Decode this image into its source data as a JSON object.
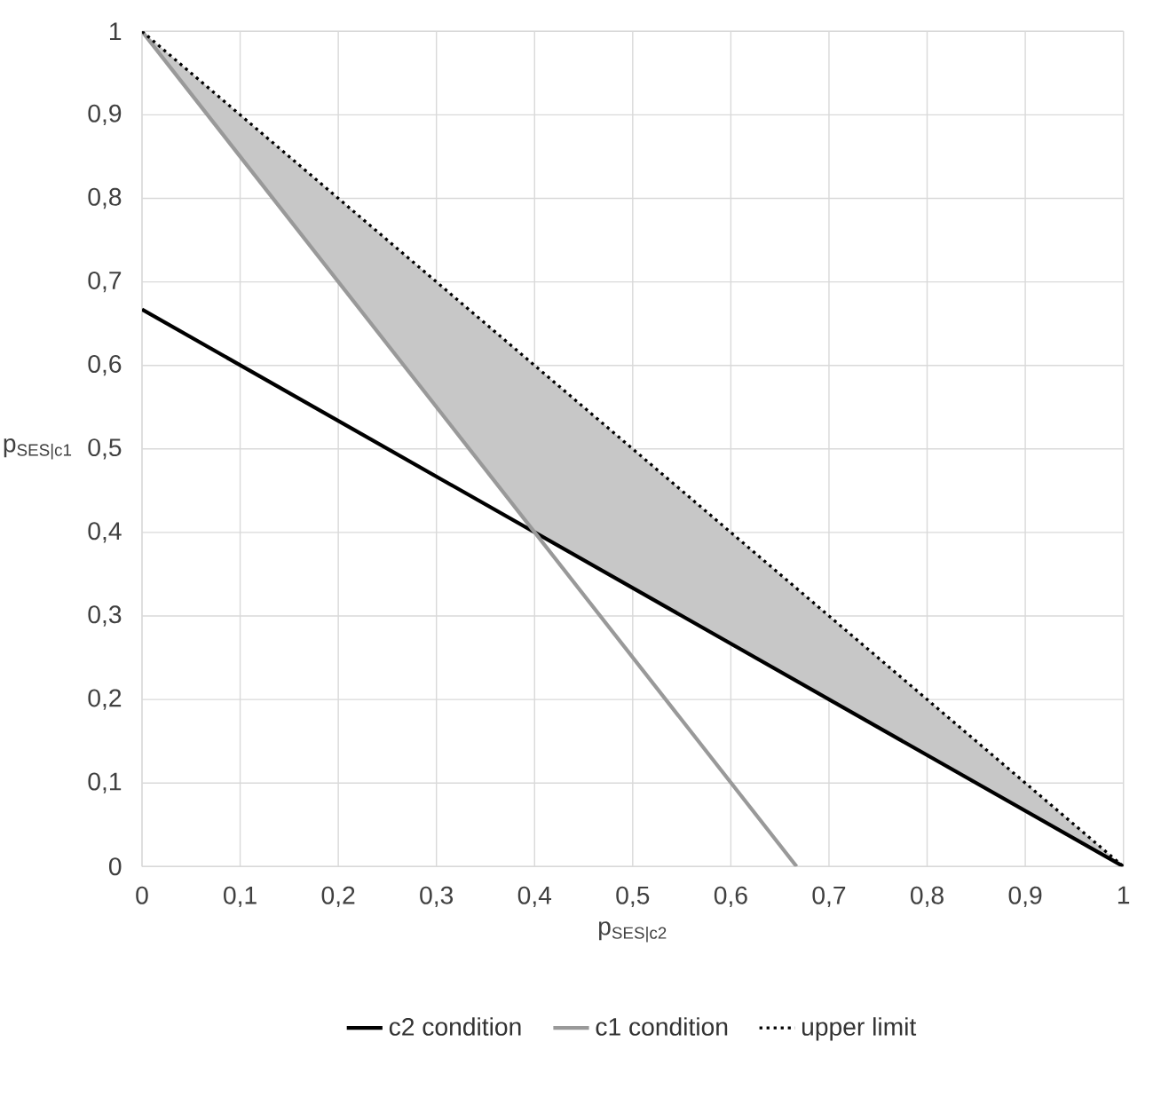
{
  "chart_data": {
    "type": "line",
    "xlabel": "p$_{SES|c2}$",
    "ylabel": "p$_{SES|c1}$",
    "xlim": [
      0,
      1
    ],
    "ylim": [
      0,
      1
    ],
    "xticks": [
      0,
      {
        "value": 0.1,
        "label": "0,1"
      },
      {
        "value": 0.2,
        "label": "0,2"
      },
      {
        "value": 0.3,
        "label": "0,3"
      },
      {
        "value": 0.4,
        "label": "0,4"
      },
      {
        "value": 0.5,
        "label": "0,5"
      },
      {
        "value": 0.6,
        "label": "0,6"
      },
      {
        "value": 0.7,
        "label": "0,7"
      },
      {
        "value": 0.8,
        "label": "0,8"
      },
      {
        "value": 0.9,
        "label": "0,9"
      },
      1
    ],
    "yticks": [
      0,
      {
        "value": 0.1,
        "label": "0,1"
      },
      {
        "value": 0.2,
        "label": "0,2"
      },
      {
        "value": 0.3,
        "label": "0,3"
      },
      {
        "value": 0.4,
        "label": "0,4"
      },
      {
        "value": 0.5,
        "label": "0,5"
      },
      {
        "value": 0.6,
        "label": "0,6"
      },
      {
        "value": 0.7,
        "label": "0,7"
      },
      {
        "value": 0.8,
        "label": "0,8"
      },
      {
        "value": 0.9,
        "label": "0,9"
      },
      1
    ],
    "grid": true,
    "legend": "bottom",
    "series": [
      {
        "name": "c2 condition",
        "color": "#000000",
        "line_style": "solid",
        "x": [
          0,
          1
        ],
        "values": [
          0.667,
          0
        ]
      },
      {
        "name": "c1 condition",
        "color": "#999999",
        "line_style": "solid",
        "x": [
          0,
          0.667
        ],
        "values": [
          1,
          0
        ]
      },
      {
        "name": "upper limit",
        "color": "#000000",
        "line_style": "dotted",
        "x": [
          0,
          0.4,
          1
        ],
        "values": [
          1,
          0.6,
          0
        ],
        "lower": [
          1,
          0.4,
          0
        ],
        "upper": [
          1,
          0.6,
          0
        ]
      }
    ]
  }
}
